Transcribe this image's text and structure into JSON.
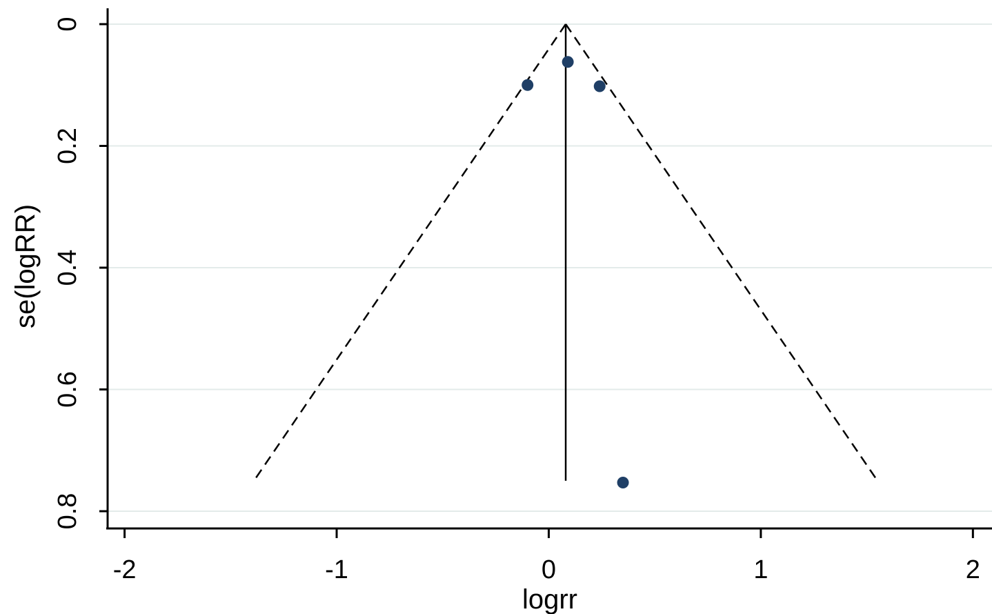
{
  "chart_data": {
    "type": "scatter",
    "title": "",
    "xlabel": "logrr",
    "ylabel": "se(logRR)",
    "xlim": [
      -2.08,
      2.09
    ],
    "ylim": [
      0,
      0.82
    ],
    "y_reversed": true,
    "grid": true,
    "x_ticks": [
      -2,
      -1,
      0,
      1,
      2
    ],
    "x_tick_labels": [
      "-2",
      "-1",
      "0",
      "1",
      "2"
    ],
    "y_ticks": [
      0,
      0.2,
      0.4,
      0.6,
      0.8
    ],
    "y_tick_labels": [
      "0",
      "0.2",
      "0.4",
      "0.6",
      "0.8"
    ],
    "points": [
      {
        "x": 0.09,
        "y": 0.062
      },
      {
        "x": -0.1,
        "y": 0.1
      },
      {
        "x": 0.24,
        "y": 0.102
      },
      {
        "x": 0.35,
        "y": 0.753
      }
    ],
    "pooled_estimate": 0.08,
    "pseudo_ci_se_max": 0.75,
    "colors": {
      "points": "#1f3f66",
      "lines": "#000000",
      "grid": "#e3ebea"
    }
  }
}
